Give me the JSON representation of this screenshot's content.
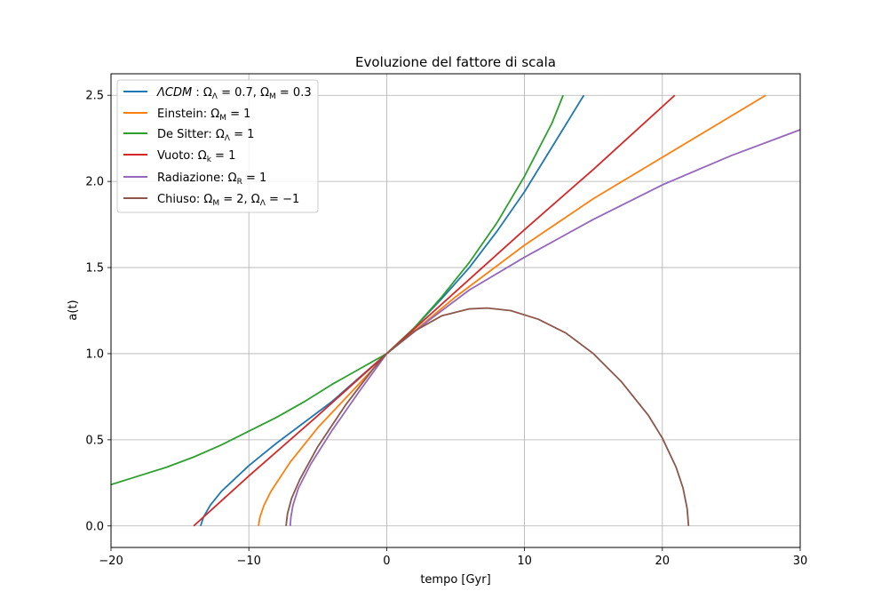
{
  "chart_data": {
    "type": "line",
    "title": "Evoluzione del fattore di scala",
    "xlabel": "tempo [Gyr]",
    "ylabel": "a(t)",
    "xlim": [
      -20,
      30
    ],
    "ylim": [
      -0.125,
      2.625
    ],
    "xticks": [
      -20,
      -10,
      0,
      10,
      20,
      30
    ],
    "yticks": [
      0.0,
      0.5,
      1.0,
      1.5,
      2.0,
      2.5
    ],
    "xtick_labels": [
      "−20",
      "−10",
      "0",
      "10",
      "20",
      "30"
    ],
    "ytick_labels": [
      "0.0",
      "0.5",
      "1.0",
      "1.5",
      "2.0",
      "2.5"
    ],
    "grid": true,
    "legend_position": "top-left",
    "series": [
      {
        "name": "ΛCDM: Ω_Λ = 0.7, Ω_M = 0.3",
        "color": "#1f77b4",
        "points": [
          [
            -13.5,
            0.0
          ],
          [
            -13.3,
            0.05
          ],
          [
            -12.8,
            0.12
          ],
          [
            -12.0,
            0.2
          ],
          [
            -10.0,
            0.35
          ],
          [
            -8.0,
            0.48
          ],
          [
            -6.0,
            0.6
          ],
          [
            -4.0,
            0.72
          ],
          [
            -2.0,
            0.86
          ],
          [
            0.0,
            1.0
          ],
          [
            2.0,
            1.15
          ],
          [
            4.0,
            1.32
          ],
          [
            6.0,
            1.5
          ],
          [
            8.0,
            1.71
          ],
          [
            10.0,
            1.94
          ],
          [
            12.0,
            2.2
          ],
          [
            14.3,
            2.5
          ]
        ]
      },
      {
        "name": "Einstein: Ω_M = 1",
        "color": "#ff7f0e",
        "points": [
          [
            -9.3,
            0.0
          ],
          [
            -9.2,
            0.05
          ],
          [
            -8.9,
            0.12
          ],
          [
            -8.4,
            0.2
          ],
          [
            -7.0,
            0.37
          ],
          [
            -5.0,
            0.57
          ],
          [
            -3.0,
            0.74
          ],
          [
            -1.0,
            0.91
          ],
          [
            0.0,
            1.0
          ],
          [
            2.0,
            1.13
          ],
          [
            5.0,
            1.33
          ],
          [
            10.0,
            1.63
          ],
          [
            15.0,
            1.9
          ],
          [
            20.0,
            2.14
          ],
          [
            25.0,
            2.38
          ],
          [
            27.5,
            2.5
          ]
        ]
      },
      {
        "name": "De Sitter: Ω_Λ = 1",
        "color": "#2ca02c",
        "points": [
          [
            -20.0,
            0.24
          ],
          [
            -18.0,
            0.29
          ],
          [
            -16.0,
            0.34
          ],
          [
            -14.0,
            0.4
          ],
          [
            -12.0,
            0.47
          ],
          [
            -10.0,
            0.55
          ],
          [
            -8.0,
            0.63
          ],
          [
            -6.0,
            0.72
          ],
          [
            -4.0,
            0.82
          ],
          [
            -2.0,
            0.91
          ],
          [
            0.0,
            1.0
          ],
          [
            2.0,
            1.15
          ],
          [
            4.0,
            1.33
          ],
          [
            6.0,
            1.53
          ],
          [
            8.0,
            1.76
          ],
          [
            10.0,
            2.03
          ],
          [
            12.0,
            2.34
          ],
          [
            12.8,
            2.5
          ]
        ]
      },
      {
        "name": "Vuoto: Ω_k = 1",
        "color": "#d62728",
        "points": [
          [
            -14.0,
            0.0
          ],
          [
            -10.0,
            0.29
          ],
          [
            -5.0,
            0.64
          ],
          [
            0.0,
            1.0
          ],
          [
            5.0,
            1.36
          ],
          [
            10.0,
            1.72
          ],
          [
            15.0,
            2.07
          ],
          [
            20.9,
            2.5
          ]
        ]
      },
      {
        "name": "Radiazione: Ω_R = 1",
        "color": "#9467bd",
        "points": [
          [
            -7.0,
            0.0
          ],
          [
            -6.95,
            0.05
          ],
          [
            -6.8,
            0.12
          ],
          [
            -6.4,
            0.22
          ],
          [
            -5.5,
            0.36
          ],
          [
            -4.0,
            0.55
          ],
          [
            -2.0,
            0.78
          ],
          [
            0.0,
            1.0
          ],
          [
            3.0,
            1.19
          ],
          [
            6.0,
            1.37
          ],
          [
            10.0,
            1.56
          ],
          [
            15.0,
            1.78
          ],
          [
            20.0,
            1.98
          ],
          [
            25.0,
            2.15
          ],
          [
            30.0,
            2.3
          ]
        ]
      },
      {
        "name": "Chiuso: Ω_M = 2, Ω_Λ = −1",
        "color": "#8c564b",
        "points": [
          [
            -7.3,
            0.0
          ],
          [
            -7.2,
            0.07
          ],
          [
            -6.9,
            0.16
          ],
          [
            -6.3,
            0.27
          ],
          [
            -5.0,
            0.46
          ],
          [
            -3.0,
            0.7
          ],
          [
            -1.0,
            0.91
          ],
          [
            0.0,
            1.0
          ],
          [
            2.0,
            1.13
          ],
          [
            4.0,
            1.22
          ],
          [
            6.0,
            1.26
          ],
          [
            7.3,
            1.265
          ],
          [
            9.0,
            1.25
          ],
          [
            11.0,
            1.2
          ],
          [
            13.0,
            1.12
          ],
          [
            15.0,
            1.0
          ],
          [
            17.0,
            0.84
          ],
          [
            19.0,
            0.64
          ],
          [
            20.0,
            0.51
          ],
          [
            21.0,
            0.34
          ],
          [
            21.5,
            0.22
          ],
          [
            21.8,
            0.1
          ],
          [
            21.9,
            0.0
          ]
        ]
      }
    ]
  }
}
